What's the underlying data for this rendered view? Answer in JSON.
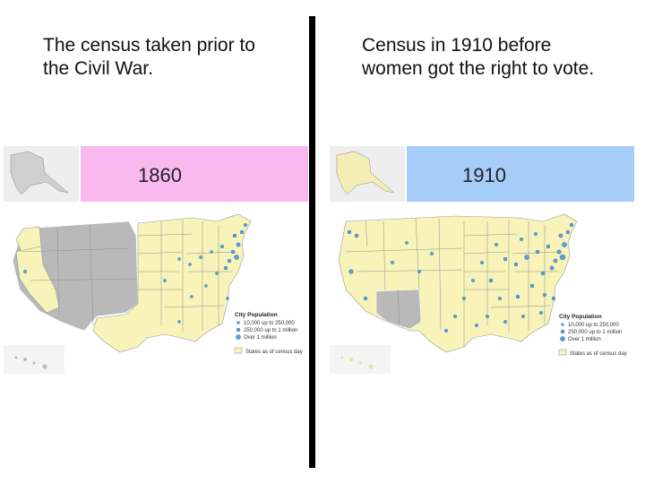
{
  "captions": {
    "left": "The census taken prior to the Civil War.",
    "right": "Census in 1910 before women got the right to vote."
  },
  "maps": [
    {
      "year": "1860",
      "banner_color": "#f9b9ef",
      "legend": {
        "title": "City Population",
        "small": "10,000 up to 250,000",
        "medium": "250,000 up to 1 million",
        "large": "Over 1 million",
        "states": "States as of census day"
      }
    },
    {
      "year": "1910",
      "banner_color": "#a6cdf7",
      "legend": {
        "title": "City Population",
        "small": "10,000 up to 250,000",
        "medium": "250,000 up to 1 million",
        "large": "Over 1 million",
        "states": "States as of census day"
      }
    }
  ],
  "colors": {
    "state_fill": "#f7f3b9",
    "territory_fill": "#b9b9b9",
    "city_dot": "#5a9fd6",
    "water": "#ffffff",
    "divider": "#000000"
  }
}
